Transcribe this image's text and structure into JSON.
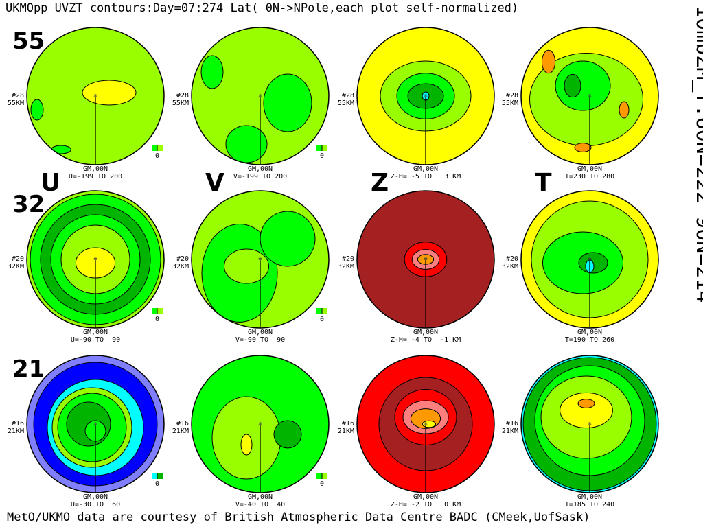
{
  "title": "UKMOpp UVZT contours:Day=07:274 Lat( 0N->NPole,each plot self-normalized)",
  "side_label": "10mbZM_T:60N=222 90N=214",
  "footer": "MetO/UKMO data are courtesy of British Atmospheric Data Centre BADC (CMeek,UofSask)",
  "columns": [
    "U",
    "V",
    "Z",
    "T"
  ],
  "meridian_label": "GM,00N",
  "legend_zero": "0",
  "colors": {
    "blue": "#0000ff",
    "lavender": "#7f7fff",
    "cyan": "#00ffff",
    "dkgreen": "#00b400",
    "green": "#00ff00",
    "ltgreen": "#99ff00",
    "yellow": "#ffff00",
    "orange": "#ff9900",
    "pink": "#ff7f7f",
    "red": "#ff0000",
    "maroon": "#a52020"
  },
  "chart_data": {
    "type": "heatmap",
    "title": "UKMOpp UVZT contours:Day=07:274 Lat( 0N->NPole,each plot self-normalized)",
    "rows": [
      {
        "row_label": "55",
        "level": "#28",
        "height": "55KM",
        "ranges": [
          "U=-199 TO 200",
          "V=-199 TO 200",
          "Z-H= -5 TO   3 KM",
          "T=230 TO 280"
        ]
      },
      {
        "row_label": "32",
        "level": "#20",
        "height": "32KM",
        "ranges": [
          "U=-90 TO  90",
          "V=-90 TO  90",
          "Z-H= -4 TO  -1 KM",
          "T=190 TO 260"
        ]
      },
      {
        "row_label": "21",
        "level": "#16",
        "height": "21KM",
        "ranges": [
          "U=-30 TO  60",
          "V=-40 TO  40",
          "Z-H= -2 TO   0 KM",
          "T=185 TO 240"
        ]
      }
    ]
  }
}
